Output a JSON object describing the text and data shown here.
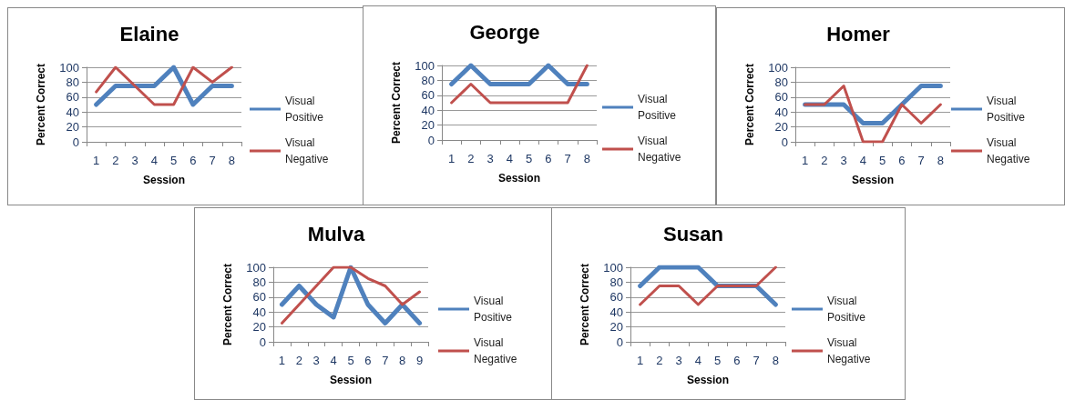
{
  "chart_data": [
    {
      "type": "line",
      "title": "Elaine",
      "xlabel": "Session",
      "ylabel": "Percent Correct",
      "categories": [
        "1",
        "2",
        "3",
        "4",
        "5",
        "6",
        "7",
        "8"
      ],
      "ylim": [
        0,
        100
      ],
      "yticks": [
        0,
        20,
        40,
        60,
        80,
        100
      ],
      "grid": "y",
      "legend": "right",
      "marker": "none",
      "line_style": "solid",
      "series": [
        {
          "name": "Visual Positive",
          "color": "#4f81bd",
          "values": [
            50,
            75,
            75,
            75,
            100,
            50,
            75,
            75
          ]
        },
        {
          "name": "Visual Negative",
          "color": "#c0504d",
          "values": [
            67,
            100,
            75,
            50,
            50,
            100,
            80,
            100
          ]
        }
      ]
    },
    {
      "type": "line",
      "title": "George",
      "xlabel": "Session",
      "ylabel": "Percent Correct",
      "categories": [
        "1",
        "2",
        "3",
        "4",
        "5",
        "6",
        "7",
        "8"
      ],
      "ylim": [
        0,
        100
      ],
      "yticks": [
        0,
        20,
        40,
        60,
        80,
        100
      ],
      "grid": "y",
      "legend": "right",
      "marker": "none",
      "line_style": "solid",
      "series": [
        {
          "name": "Visual Positive",
          "color": "#4f81bd",
          "values": [
            75,
            100,
            75,
            75,
            75,
            100,
            75,
            75
          ]
        },
        {
          "name": "Visual Negative",
          "color": "#c0504d",
          "values": [
            50,
            75,
            50,
            50,
            50,
            50,
            50,
            100
          ]
        }
      ]
    },
    {
      "type": "line",
      "title": "Homer",
      "xlabel": "Session",
      "ylabel": "Percent Correct",
      "categories": [
        "1",
        "2",
        "3",
        "4",
        "5",
        "6",
        "7",
        "8"
      ],
      "ylim": [
        0,
        100
      ],
      "yticks": [
        0,
        20,
        40,
        60,
        80,
        100
      ],
      "grid": "y",
      "legend": "right",
      "marker": "none",
      "line_style": "solid",
      "series": [
        {
          "name": "Visual Positive",
          "color": "#4f81bd",
          "values": [
            50,
            50,
            50,
            25,
            25,
            50,
            75,
            75
          ]
        },
        {
          "name": "Visual Negative",
          "color": "#c0504d",
          "values": [
            50,
            50,
            75,
            0,
            0,
            50,
            25,
            50
          ]
        }
      ]
    },
    {
      "type": "line",
      "title": "Mulva",
      "xlabel": "Session",
      "ylabel": "Percent Correct",
      "categories": [
        "1",
        "2",
        "3",
        "4",
        "5",
        "6",
        "7",
        "8",
        "9"
      ],
      "ylim": [
        0,
        100
      ],
      "yticks": [
        0,
        20,
        40,
        60,
        80,
        100
      ],
      "grid": "y",
      "legend": "right",
      "marker": "none",
      "line_style": "solid",
      "series": [
        {
          "name": "Visual Positive",
          "color": "#4f81bd",
          "values": [
            50,
            75,
            50,
            33,
            100,
            50,
            25,
            50,
            25
          ]
        },
        {
          "name": "Visual Negative",
          "color": "#c0504d",
          "values": [
            25,
            50,
            75,
            100,
            100,
            85,
            75,
            50,
            67
          ]
        }
      ]
    },
    {
      "type": "line",
      "title": "Susan",
      "xlabel": "Session",
      "ylabel": "Percent Correct",
      "categories": [
        "1",
        "2",
        "3",
        "4",
        "5",
        "6",
        "7",
        "8"
      ],
      "ylim": [
        0,
        100
      ],
      "yticks": [
        0,
        20,
        40,
        60,
        80,
        100
      ],
      "grid": "y",
      "legend": "right",
      "marker": "none",
      "line_style": "solid",
      "series": [
        {
          "name": "Visual Positive",
          "color": "#4f81bd",
          "values": [
            75,
            100,
            100,
            100,
            75,
            75,
            75,
            50
          ]
        },
        {
          "name": "Visual Negative",
          "color": "#c0504d",
          "values": [
            50,
            75,
            75,
            50,
            75,
            75,
            75,
            100
          ]
        }
      ]
    }
  ]
}
